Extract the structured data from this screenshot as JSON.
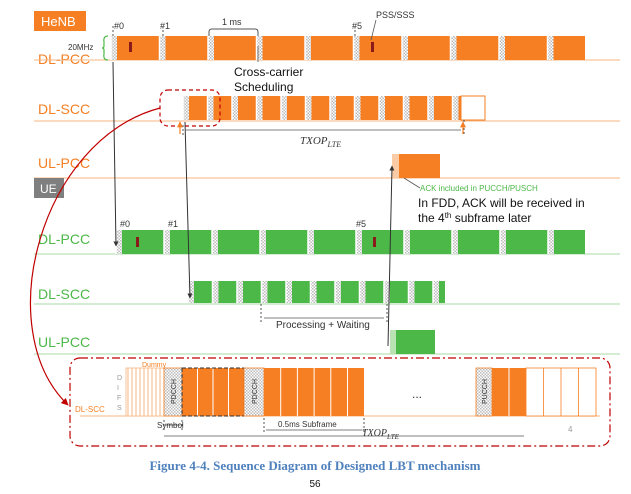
{
  "colors": {
    "orange": "#F57F22",
    "orange_light": "#FBCBA5",
    "green": "#4CB848",
    "green_light": "#B9E3B3",
    "grey_box": "#7F7F7F",
    "red_dashed": "#C00000",
    "caption_blue": "#4F81BD",
    "dark_red_marker": "#8B1A1A"
  },
  "henb": {
    "badge": "HeNB",
    "bandwidth": "20MHz",
    "subframe_labels": [
      "#0",
      "#1",
      "#5"
    ],
    "duration_label": "1 ms",
    "pss_label": "PSS/SSS",
    "cross_carrier_label": "Cross-carrier\nScheduling",
    "txop_label": "TXOP",
    "txop_sub": "LTE",
    "ack_label": "ACK included in PUCCH/PUSCH",
    "fdd_note_1": "In FDD, ACK will be received in",
    "fdd_note_2_pre": "the 4",
    "fdd_note_2_sup": "th",
    "fdd_note_2_post": " subframe later"
  },
  "rows": {
    "henb_dl_pcc": "DL-PCC",
    "henb_dl_scc": "DL-SCC",
    "henb_ul_pcc": "UL-PCC",
    "ue_dl_pcc": "DL-PCC",
    "ue_dl_scc": "DL-SCC",
    "ue_ul_pcc": "UL-PCC"
  },
  "ue": {
    "badge": "UE",
    "subframe_labels": [
      "#0",
      "#1",
      "#5"
    ],
    "processing_label": "Processing + Waiting"
  },
  "zoom": {
    "row_label": "DL-SCC",
    "difs_letters": [
      "D",
      "I",
      "F",
      "S"
    ],
    "dummy_label": "Dummy",
    "pdcch_label": "PDCCH",
    "pucch_label": "PUCCH",
    "ellipsis": "...",
    "symbol_label": "Symbol",
    "subframe_label": "0.5ms Subframe",
    "txop_label": "TXOP",
    "txop_sub": "LTE",
    "corner_number": "4"
  },
  "caption": "Figure 4-4. Sequence Diagram of Designed LBT mechanism",
  "page_number": "56"
}
